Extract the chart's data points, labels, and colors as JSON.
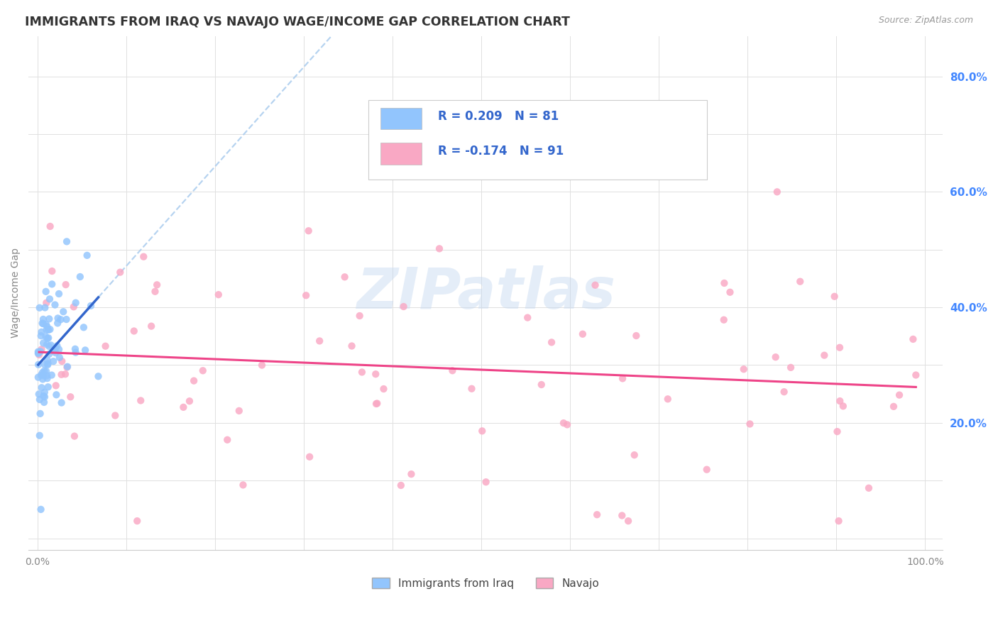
{
  "title": "IMMIGRANTS FROM IRAQ VS NAVAJO WAGE/INCOME GAP CORRELATION CHART",
  "source": "Source: ZipAtlas.com",
  "ylabel": "Wage/Income Gap",
  "color_iraq": "#92c5fd",
  "color_navajo": "#f9a8c4",
  "color_trendline_iraq_solid": "#3366cc",
  "color_trendline_iraq_dashed": "#aaccee",
  "color_trendline_navajo": "#ee4488",
  "R_iraq": 0.209,
  "N_iraq": 81,
  "R_navajo": -0.174,
  "N_navajo": 91,
  "legend_label_iraq": "Immigrants from Iraq",
  "legend_label_navajo": "Navajo",
  "watermark": "ZIPatlas",
  "background_color": "#ffffff",
  "grid_color": "#e0e0e0",
  "ytick_labels": [
    "20.0%",
    "40.0%",
    "60.0%",
    "80.0%"
  ],
  "ytick_vals": [
    0.2,
    0.4,
    0.6,
    0.8
  ],
  "ytick_color": "#4488ff",
  "right_axis_labels": true
}
